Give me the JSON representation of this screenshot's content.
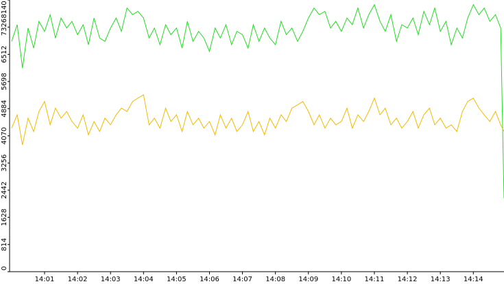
{
  "chart_data": {
    "type": "line",
    "x": [
      840,
      840.17,
      840.33,
      840.5,
      840.67,
      840.83,
      841,
      841.17,
      841.33,
      841.5,
      841.67,
      841.83,
      842,
      842.17,
      842.33,
      842.5,
      842.67,
      842.83,
      843,
      843.17,
      843.33,
      843.5,
      843.67,
      843.83,
      844,
      844.17,
      844.33,
      844.5,
      844.67,
      844.83,
      845,
      845.17,
      845.33,
      845.5,
      845.67,
      845.83,
      846,
      846.17,
      846.33,
      846.5,
      846.67,
      846.83,
      847,
      847.17,
      847.33,
      847.5,
      847.67,
      847.83,
      848,
      848.17,
      848.33,
      848.5,
      848.67,
      848.83,
      849,
      849.17,
      849.33,
      849.5,
      849.67,
      849.83,
      850,
      850.17,
      850.33,
      850.5,
      850.67,
      850.83,
      851,
      851.17,
      851.33,
      851.5,
      851.67,
      851.83,
      852,
      852.17,
      852.33,
      852.5,
      852.67,
      852.83,
      853,
      853.17,
      853.33,
      853.5,
      853.67,
      853.83,
      854,
      854.17,
      854.33,
      854.5,
      854.67,
      854.83,
      854.93
    ],
    "series": [
      {
        "color": "#22dd22",
        "values": [
          6900,
          7400,
          6100,
          7300,
          6700,
          7500,
          7200,
          7700,
          7000,
          7600,
          7300,
          7500,
          7100,
          7400,
          6800,
          7600,
          7000,
          6900,
          7300,
          7600,
          7200,
          7900,
          7700,
          7800,
          7600,
          7000,
          7300,
          6800,
          7400,
          7100,
          7300,
          6700,
          7500,
          6900,
          7200,
          7000,
          6600,
          7300,
          7000,
          7400,
          6800,
          7200,
          7100,
          6700,
          7400,
          6900,
          7300,
          7000,
          6800,
          7500,
          7100,
          7300,
          6900,
          7200,
          7600,
          7900,
          7700,
          7800,
          7300,
          7500,
          7200,
          7600,
          7400,
          7900,
          7300,
          7700,
          8000,
          7500,
          7200,
          7700,
          6900,
          7400,
          7300,
          7600,
          7100,
          7800,
          7400,
          7900,
          7200,
          7500,
          6800,
          7300,
          7000,
          7600,
          8000,
          7700,
          7900,
          7500,
          7700,
          7300,
          2200
        ]
      },
      {
        "color": "#f2bb00",
        "values": [
          4300,
          4700,
          3800,
          4600,
          4200,
          4800,
          5100,
          4400,
          4900,
          4600,
          4800,
          4500,
          4300,
          4700,
          4100,
          4500,
          4200,
          4600,
          4400,
          4700,
          4900,
          4800,
          5100,
          5200,
          5300,
          4400,
          4600,
          4300,
          4900,
          4500,
          4700,
          4200,
          4800,
          4400,
          4600,
          4300,
          4500,
          4100,
          4700,
          4300,
          4600,
          4200,
          4400,
          4800,
          4200,
          4500,
          4100,
          4600,
          4300,
          4700,
          4500,
          4900,
          5000,
          5100,
          4800,
          4400,
          4700,
          4300,
          4600,
          4400,
          4500,
          4900,
          4300,
          4700,
          4500,
          4800,
          5200,
          4700,
          4900,
          4400,
          4600,
          4300,
          4500,
          4800,
          4300,
          4700,
          4900,
          4400,
          4600,
          4300,
          4400,
          4200,
          4800,
          5100,
          5200,
          4900,
          4700,
          4500,
          4800,
          4400,
          4200
        ]
      }
    ],
    "xlim": [
      839.94,
      854.93
    ],
    "xticks": [
      {
        "value": 841,
        "label": "14:01"
      },
      {
        "value": 842,
        "label": "14:02"
      },
      {
        "value": 843,
        "label": "14:03"
      },
      {
        "value": 844,
        "label": "14:04"
      },
      {
        "value": 845,
        "label": "14:05"
      },
      {
        "value": 846,
        "label": "14:06"
      },
      {
        "value": 847,
        "label": "14:07"
      },
      {
        "value": 848,
        "label": "14:08"
      },
      {
        "value": 849,
        "label": "14:09"
      },
      {
        "value": 850,
        "label": "14:10"
      },
      {
        "value": 851,
        "label": "14:11"
      },
      {
        "value": 852,
        "label": "14:12"
      },
      {
        "value": 853,
        "label": "14:13"
      },
      {
        "value": 854,
        "label": "14:14"
      }
    ],
    "ylim": [
      0,
      8140
    ],
    "yticks": [
      0,
      814,
      1628,
      2442,
      3256,
      4070,
      4884,
      5698,
      6512,
      7326,
      8140
    ]
  }
}
